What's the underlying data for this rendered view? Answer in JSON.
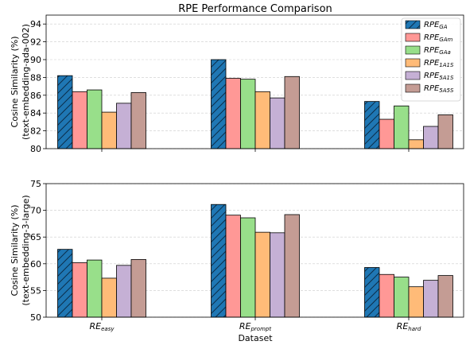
{
  "chart_data": {
    "type": "bar",
    "title": "RPE Performance Comparison",
    "xlabel": "Dataset",
    "categories": [
      {
        "main": "RE",
        "sub": "easy"
      },
      {
        "main": "RE",
        "sub": "prompt"
      },
      {
        "main": "RE",
        "sub": "hard"
      }
    ],
    "series": [
      {
        "name": "RPE",
        "sub": "GA",
        "color": "#1f77b4",
        "hatch": true
      },
      {
        "name": "RPE",
        "sub": "GAm",
        "color": "#ff9896",
        "hatch": false
      },
      {
        "name": "RPE",
        "sub": "GAa",
        "color": "#98df8a",
        "hatch": false
      },
      {
        "name": "RPE",
        "sub": "1A1S",
        "color": "#ffbb78",
        "hatch": false
      },
      {
        "name": "RPE",
        "sub": "5A1S",
        "color": "#c5b0d5",
        "hatch": false
      },
      {
        "name": "RPE",
        "sub": "5A5S",
        "color": "#c49c94",
        "hatch": false
      }
    ],
    "panels": [
      {
        "ylabel_line1": "Cosine Similarity (%)",
        "ylabel_line2": "(text-embedding-ada-002)",
        "ylim": [
          80,
          95
        ],
        "yticks": [
          80,
          82,
          84,
          86,
          88,
          90,
          92,
          94
        ],
        "legend": "top-right",
        "values": [
          [
            88.2,
            86.4,
            86.6,
            84.1,
            85.1,
            86.3
          ],
          [
            90.0,
            87.9,
            87.8,
            86.4,
            85.7,
            88.1
          ],
          [
            85.3,
            83.3,
            84.8,
            81.0,
            82.5,
            83.8
          ]
        ]
      },
      {
        "ylabel_line1": "Cosine Similarity (%)",
        "ylabel_line2": "(text-embedding-3-large)",
        "ylim": [
          50,
          75
        ],
        "yticks": [
          50,
          55,
          60,
          65,
          70,
          75
        ],
        "legend": "none",
        "values": [
          [
            62.7,
            60.2,
            60.7,
            57.3,
            59.7,
            60.8
          ],
          [
            71.1,
            69.1,
            68.6,
            65.9,
            65.8,
            69.2
          ],
          [
            59.3,
            58.0,
            57.5,
            55.7,
            56.9,
            57.8
          ]
        ]
      }
    ]
  }
}
